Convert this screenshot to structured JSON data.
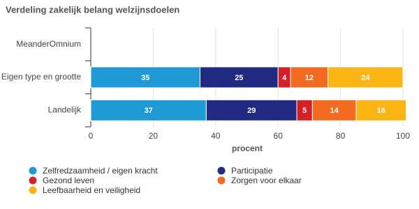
{
  "chart_data": {
    "type": "stacked-bar-horizontal",
    "title": "Verdeling zakelijk belang welzijnsdoelen",
    "categories": [
      "MeanderOmnium",
      "Eigen type en grootte",
      "Landelijk"
    ],
    "series": [
      {
        "name": "Zelfredzaamheid / eigen kracht",
        "color": "#1f9ad6",
        "values": [
          null,
          35,
          37
        ]
      },
      {
        "name": "Participatie",
        "color": "#1f2a80",
        "values": [
          null,
          25,
          29
        ]
      },
      {
        "name": "Gezond leven",
        "color": "#d42027",
        "values": [
          null,
          4,
          5
        ]
      },
      {
        "name": "Zorgen voor elkaar",
        "color": "#f26b21",
        "values": [
          null,
          12,
          14
        ]
      },
      {
        "name": "Leefbaarheid en veiligheid",
        "color": "#fbb615",
        "values": [
          null,
          24,
          16
        ]
      }
    ],
    "x_label": "procent",
    "xlim": [
      0,
      100
    ],
    "xticks": [
      0,
      20,
      40,
      60,
      80,
      100
    ],
    "grid": true,
    "legend": "bottom"
  }
}
